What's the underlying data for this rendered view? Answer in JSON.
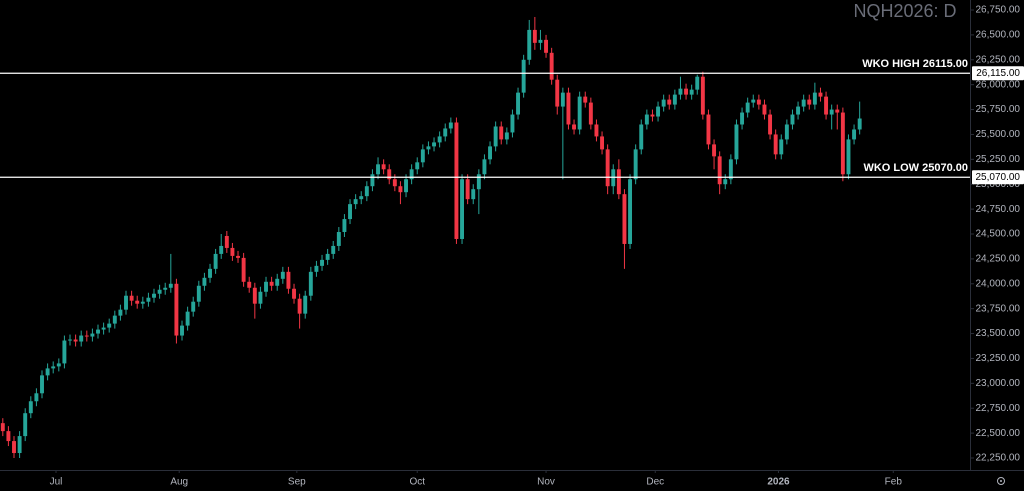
{
  "chart_data": {
    "type": "candlestick",
    "title": "NQH2026: D",
    "up_color": "#26a69a",
    "down_color": "#f23645",
    "xlim": [
      -0.5,
      172.7
    ],
    "xticks": [
      {
        "value": 9.5,
        "label": "Jul"
      },
      {
        "value": 31.5,
        "label": "Aug"
      },
      {
        "value": 52.5,
        "label": "Sep"
      },
      {
        "value": 74,
        "label": "Oct"
      },
      {
        "value": 97,
        "label": "Nov"
      },
      {
        "value": 116.5,
        "label": "Dec"
      },
      {
        "value": 138.5,
        "label": "2026"
      },
      {
        "value": 159,
        "label": "Feb"
      }
    ],
    "ylim": [
      22250,
      26750
    ],
    "yticks": [
      {
        "value": 22250,
        "label": "22,250.00"
      },
      {
        "value": 22500,
        "label": "22,500.00"
      },
      {
        "value": 22750,
        "label": "22,750.00"
      },
      {
        "value": 23000,
        "label": "23,000.00"
      },
      {
        "value": 23250,
        "label": "23,250.00"
      },
      {
        "value": 23500,
        "label": "23,500.00"
      },
      {
        "value": 23750,
        "label": "23,750.00"
      },
      {
        "value": 24000,
        "label": "24,000.00"
      },
      {
        "value": 24250,
        "label": "24,250.00"
      },
      {
        "value": 24500,
        "label": "24,500.00"
      },
      {
        "value": 24750,
        "label": "24,750.00"
      },
      {
        "value": 25000,
        "label": "25,000.00"
      },
      {
        "value": 25250,
        "label": "25,250.00"
      },
      {
        "value": 25500,
        "label": "25,500.00"
      },
      {
        "value": 25750,
        "label": "25,750.00"
      },
      {
        "value": 26000,
        "label": "26,000.00"
      },
      {
        "value": 26250,
        "label": "26,250.00"
      },
      {
        "value": 26500,
        "label": "26,500.00"
      },
      {
        "value": 26750,
        "label": "26,750.00"
      }
    ],
    "levels": [
      {
        "name": "WKO HIGH 26115.00",
        "value": 26115,
        "value_label": "26,115.00"
      },
      {
        "name": "WKO LOW 25070.00",
        "value": 25070,
        "value_label": "25,070.00"
      }
    ],
    "open": [
      22600,
      22520,
      22420,
      22300,
      22470,
      22700,
      22820,
      22900,
      23080,
      23150,
      23170,
      23200,
      23430,
      23440,
      23420,
      23480,
      23470,
      23500,
      23540,
      23560,
      23600,
      23680,
      23740,
      23880,
      23830,
      23800,
      23820,
      23860,
      23900,
      23940,
      23960,
      24000,
      23480,
      23580,
      23720,
      23820,
      23980,
      24060,
      24150,
      24300,
      24480,
      24360,
      24280,
      24260,
      24020,
      23960,
      23800,
      23920,
      24020,
      23980,
      24050,
      24120,
      23950,
      23850,
      23700,
      23880,
      24120,
      24180,
      24240,
      24300,
      24380,
      24520,
      24650,
      24800,
      24850,
      24880,
      24980,
      25100,
      25200,
      25150,
      25050,
      24980,
      24920,
      25050,
      25150,
      25220,
      25350,
      25380,
      25420,
      25480,
      25560,
      25620,
      24450,
      25050,
      24850,
      24950,
      25100,
      25250,
      25380,
      25580,
      25450,
      25520,
      25700,
      25920,
      26250,
      26550,
      26420,
      26450,
      26320,
      26050,
      25780,
      25920,
      25600,
      25550,
      25880,
      25820,
      25600,
      25480,
      25350,
      24980,
      25150,
      24900,
      24400,
      25050,
      25350,
      25600,
      25700,
      25680,
      25780,
      25850,
      25800,
      25900,
      25960,
      25900,
      25950,
      26080,
      25700,
      25400,
      25280,
      25000,
      25050,
      25250,
      25600,
      25720,
      25820,
      25850,
      25800,
      25700,
      25500,
      25300,
      25450,
      25600,
      25700,
      25780,
      25850,
      25800,
      25920,
      25880,
      25700,
      25750,
      25720,
      25100,
      25450,
      25550
    ],
    "high": [
      22650,
      22570,
      22470,
      22520,
      22750,
      22870,
      22950,
      23130,
      23200,
      23220,
      23250,
      23480,
      23490,
      23490,
      23530,
      23530,
      23550,
      23590,
      23610,
      23650,
      23730,
      23790,
      23930,
      23930,
      23880,
      23870,
      23910,
      23950,
      23990,
      24010,
      24300,
      24050,
      23630,
      23770,
      23870,
      24030,
      24110,
      24200,
      24350,
      24500,
      24530,
      24410,
      24330,
      24310,
      24070,
      24010,
      23970,
      24070,
      24070,
      24100,
      24170,
      24170,
      24000,
      23900,
      23930,
      24170,
      24230,
      24290,
      24350,
      24430,
      24570,
      24700,
      24850,
      24900,
      24930,
      25030,
      25150,
      25270,
      25250,
      25200,
      25100,
      25030,
      25100,
      25200,
      25270,
      25400,
      25430,
      25470,
      25530,
      25610,
      25670,
      25670,
      25100,
      25100,
      25000,
      25150,
      25300,
      25430,
      25630,
      25630,
      25570,
      25750,
      25970,
      26300,
      26650,
      26680,
      26550,
      26500,
      26370,
      26100,
      25970,
      25970,
      25650,
      25930,
      25930,
      25870,
      25650,
      25530,
      25400,
      25200,
      25250,
      24950,
      25100,
      25400,
      25650,
      25750,
      25750,
      25830,
      25900,
      25900,
      25950,
      26080,
      26010,
      26000,
      26100,
      26130,
      25750,
      25450,
      25330,
      25100,
      25300,
      25650,
      25770,
      25870,
      25900,
      25900,
      25850,
      25750,
      25550,
      25500,
      25650,
      25750,
      25830,
      25900,
      25900,
      26020,
      25970,
      25930,
      25800,
      25800,
      25770,
      25500,
      25600,
      25830
    ],
    "low": [
      22470,
      22370,
      22250,
      22250,
      22420,
      22650,
      22770,
      22850,
      23030,
      23100,
      23120,
      23150,
      23380,
      23370,
      23370,
      23420,
      23420,
      23450,
      23490,
      23510,
      23550,
      23630,
      23690,
      23780,
      23750,
      23750,
      23770,
      23810,
      23850,
      23890,
      23910,
      23400,
      23430,
      23530,
      23670,
      23770,
      23930,
      24010,
      24100,
      24250,
      24310,
      24230,
      24210,
      23970,
      23910,
      23650,
      23750,
      23870,
      23930,
      23930,
      24000,
      23900,
      23800,
      23550,
      23650,
      23830,
      24070,
      24130,
      24190,
      24250,
      24330,
      24470,
      24600,
      24750,
      24800,
      24830,
      24930,
      25050,
      25100,
      25000,
      24930,
      24800,
      24870,
      25000,
      25100,
      25170,
      25300,
      25330,
      25370,
      25430,
      25510,
      24400,
      24400,
      24800,
      24800,
      24700,
      25050,
      25200,
      25330,
      25400,
      25400,
      25470,
      25650,
      25870,
      26200,
      26350,
      26350,
      26270,
      26000,
      25700,
      25050,
      25550,
      25500,
      25500,
      25770,
      25550,
      25430,
      25300,
      24900,
      24900,
      24850,
      24150,
      24350,
      25000,
      25300,
      25550,
      25630,
      25630,
      25730,
      25750,
      25750,
      25850,
      25850,
      25850,
      25900,
      25650,
      25350,
      25150,
      24900,
      24950,
      25000,
      25200,
      25550,
      25670,
      25770,
      25750,
      25650,
      25450,
      25250,
      25250,
      25400,
      25550,
      25650,
      25730,
      25750,
      25750,
      25830,
      25650,
      25550,
      25550,
      25030,
      25050,
      25400,
      25500
    ],
    "close": [
      22520,
      22420,
      22300,
      22470,
      22700,
      22820,
      22900,
      23080,
      23150,
      23170,
      23200,
      23430,
      23440,
      23420,
      23480,
      23470,
      23500,
      23540,
      23560,
      23600,
      23680,
      23740,
      23880,
      23830,
      23800,
      23820,
      23860,
      23900,
      23940,
      23960,
      24000,
      23480,
      23580,
      23720,
      23820,
      23980,
      24060,
      24150,
      24300,
      24380,
      24360,
      24280,
      24260,
      24020,
      23960,
      23800,
      23920,
      24020,
      23980,
      24050,
      24120,
      23950,
      23850,
      23700,
      23880,
      24120,
      24180,
      24240,
      24300,
      24380,
      24520,
      24650,
      24800,
      24850,
      24880,
      24980,
      25100,
      25200,
      25150,
      25050,
      24980,
      24920,
      25050,
      25150,
      25220,
      25350,
      25380,
      25420,
      25480,
      25560,
      25620,
      24450,
      25050,
      24850,
      24950,
      25100,
      25250,
      25380,
      25580,
      25450,
      25520,
      25700,
      25920,
      26250,
      26550,
      26420,
      26450,
      26320,
      26050,
      25780,
      25920,
      25600,
      25550,
      25880,
      25820,
      25600,
      25480,
      25350,
      24980,
      25150,
      24900,
      24400,
      25050,
      25350,
      25600,
      25700,
      25680,
      25780,
      25850,
      25800,
      25900,
      25960,
      25900,
      25950,
      26080,
      25700,
      25400,
      25280,
      25000,
      25050,
      25250,
      25600,
      25720,
      25820,
      25850,
      25800,
      25700,
      25500,
      25300,
      25450,
      25600,
      25700,
      25780,
      25850,
      25800,
      25920,
      25880,
      25700,
      25750,
      25720,
      25100,
      25450,
      25550,
      25660
    ]
  }
}
